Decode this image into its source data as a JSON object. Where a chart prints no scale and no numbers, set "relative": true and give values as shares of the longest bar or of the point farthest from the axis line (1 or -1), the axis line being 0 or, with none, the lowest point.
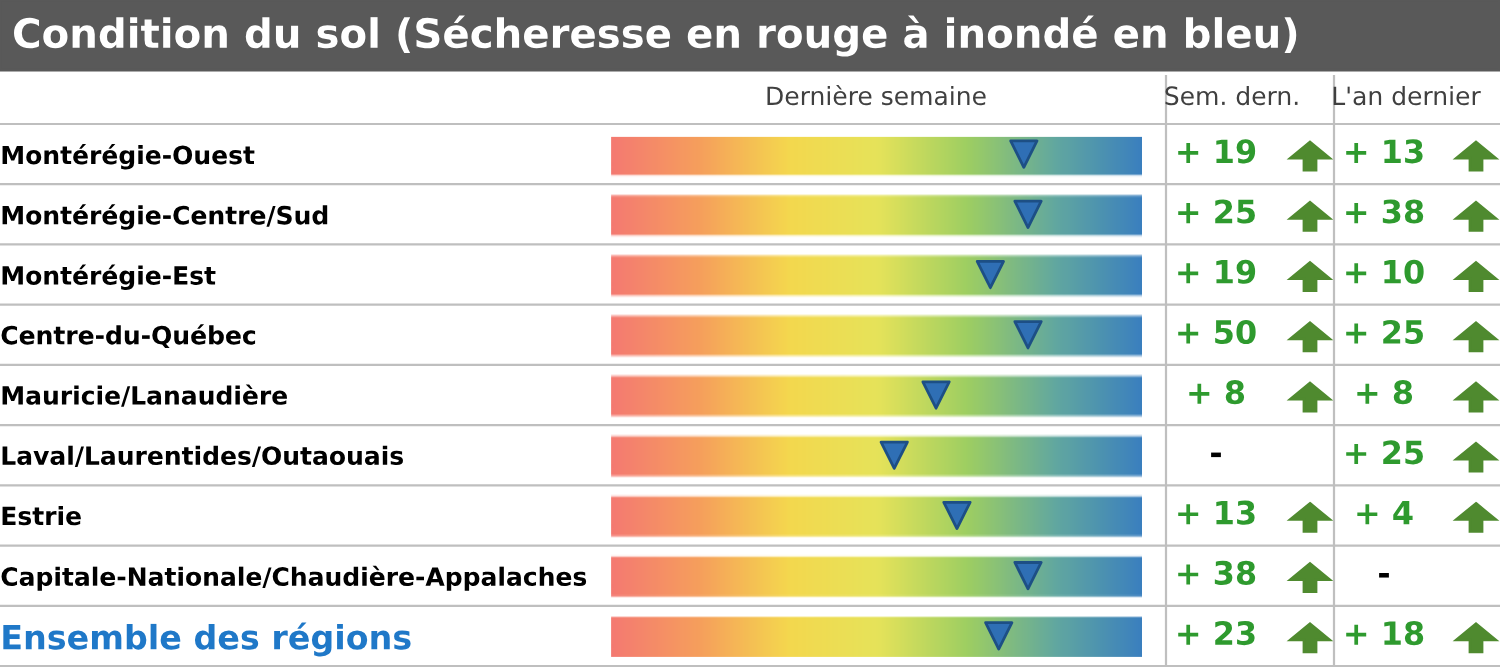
{
  "chart_data": {
    "type": "scatter",
    "title": "Condition du sol (Sécheresse en rouge à inondé en bleu)",
    "relative": true,
    "orientation": "horizontal",
    "marker": "triangle",
    "grid": false,
    "categories": [
      "Montérégie-Ouest",
      "Montérégie-Centre/Sud",
      "Montérégie-Est",
      "Centre-du-Québec",
      "Mauricie/Lanaudière",
      "Laval/Laurentides/Outaouais",
      "Estrie",
      "Capitale-Nationale/Chaudière-Appalaches",
      "Ensemble des régions"
    ],
    "series": [
      {
        "color": "#2f6fb5",
        "values": [
          0.99,
          1,
          0.91,
          1,
          0.78,
          0.68,
          0.83,
          1,
          0.93
        ]
      }
    ],
    "annotations": [
      "Dernière semaine",
      "Sem. dern.",
      "L'an dernier",
      "+ 19",
      "+ 13",
      "+ 25",
      "+ 38",
      "+ 19",
      "+ 10",
      "+ 50",
      "+ 25",
      "+ 8",
      "+ 8",
      "-",
      "+ 25",
      "+ 13",
      "+ 4",
      "+ 38",
      "-",
      "+ 23",
      "+ 18"
    ]
  }
}
